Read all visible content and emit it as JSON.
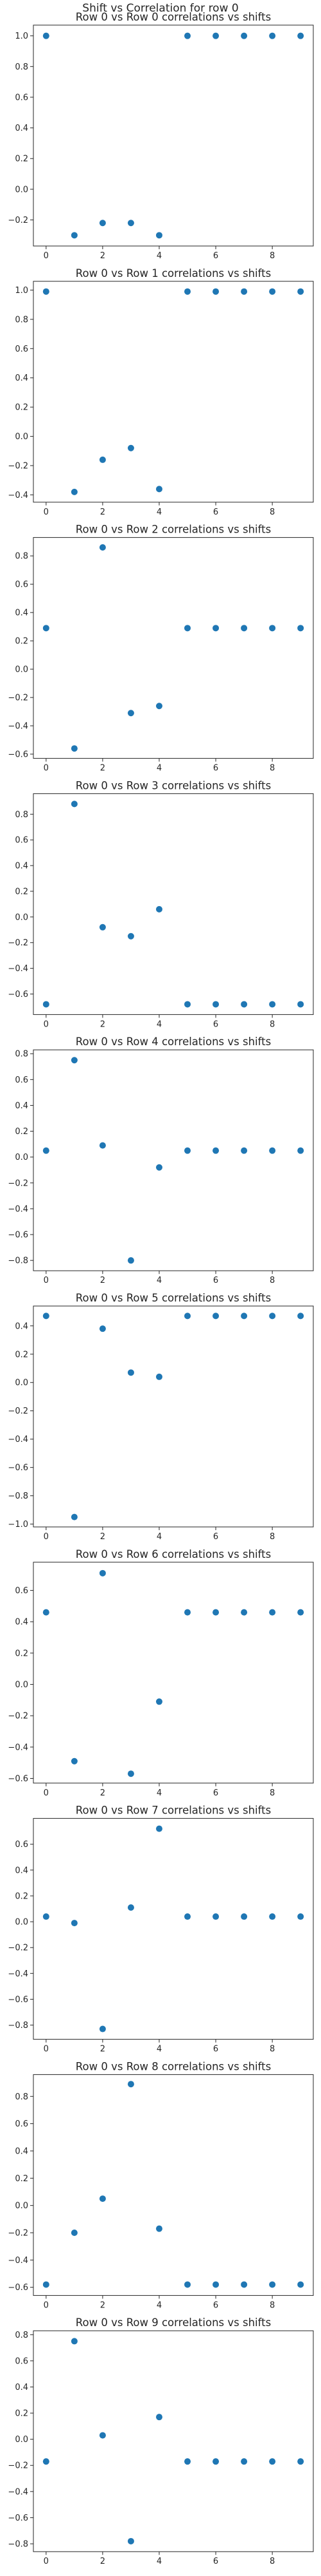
{
  "figure": {
    "suptitle": "Shift vs Correlation for row 0"
  },
  "chart_data": [
    {
      "type": "scatter",
      "title": "Row 0 vs Row 0 correlations vs shifts",
      "x": [
        0,
        1,
        2,
        3,
        4,
        5,
        6,
        7,
        8,
        9
      ],
      "y": [
        1.0,
        -0.3,
        -0.22,
        -0.22,
        -0.3,
        1.0,
        1.0,
        1.0,
        1.0,
        1.0
      ],
      "xlim": [
        -0.45,
        9.45
      ],
      "xticks": [
        0,
        2,
        4,
        6,
        8
      ],
      "ylim": [
        -0.37,
        1.07
      ],
      "yticks": [
        -0.2,
        0.0,
        0.2,
        0.4,
        0.6,
        0.8,
        1.0
      ],
      "ytick_labels": [
        "−0.2",
        "0.0",
        "0.2",
        "0.4",
        "0.6",
        "0.8",
        "1.0"
      ],
      "grid": false
    },
    {
      "type": "scatter",
      "title": "Row 0 vs Row 1 correlations vs shifts",
      "x": [
        0,
        1,
        2,
        3,
        4,
        5,
        6,
        7,
        8,
        9
      ],
      "y": [
        0.99,
        -0.38,
        -0.16,
        -0.08,
        -0.36,
        0.99,
        0.99,
        0.99,
        0.99,
        0.99
      ],
      "xlim": [
        -0.45,
        9.45
      ],
      "xticks": [
        0,
        2,
        4,
        6,
        8
      ],
      "ylim": [
        -0.45,
        1.06
      ],
      "yticks": [
        -0.4,
        -0.2,
        0.0,
        0.2,
        0.4,
        0.6,
        0.8,
        1.0
      ],
      "ytick_labels": [
        "−0.4",
        "−0.2",
        "0.0",
        "0.2",
        "0.4",
        "0.6",
        "0.8",
        "1.0"
      ],
      "grid": false
    },
    {
      "type": "scatter",
      "title": "Row 0 vs Row 2 correlations vs shifts",
      "x": [
        0,
        1,
        2,
        3,
        4,
        5,
        6,
        7,
        8,
        9
      ],
      "y": [
        0.29,
        -0.56,
        0.86,
        -0.31,
        -0.26,
        0.29,
        0.29,
        0.29,
        0.29,
        0.29
      ],
      "xlim": [
        -0.45,
        9.45
      ],
      "xticks": [
        0,
        2,
        4,
        6,
        8
      ],
      "ylim": [
        -0.63,
        0.93
      ],
      "yticks": [
        -0.6,
        -0.4,
        -0.2,
        0.0,
        0.2,
        0.4,
        0.6,
        0.8
      ],
      "ytick_labels": [
        "−0.6",
        "−0.4",
        "−0.2",
        "0.0",
        "0.2",
        "0.4",
        "0.6",
        "0.8"
      ],
      "grid": false
    },
    {
      "type": "scatter",
      "title": "Row 0 vs Row 3 correlations vs shifts",
      "x": [
        0,
        1,
        2,
        3,
        4,
        5,
        6,
        7,
        8,
        9
      ],
      "y": [
        -0.68,
        0.88,
        -0.08,
        -0.15,
        0.06,
        -0.68,
        -0.68,
        -0.68,
        -0.68,
        -0.68
      ],
      "xlim": [
        -0.45,
        9.45
      ],
      "xticks": [
        0,
        2,
        4,
        6,
        8
      ],
      "ylim": [
        -0.76,
        0.96
      ],
      "yticks": [
        -0.6,
        -0.4,
        -0.2,
        0.0,
        0.2,
        0.4,
        0.6,
        0.8
      ],
      "ytick_labels": [
        "−0.6",
        "−0.4",
        "−0.2",
        "0.0",
        "0.2",
        "0.4",
        "0.6",
        "0.8"
      ],
      "grid": false
    },
    {
      "type": "scatter",
      "title": "Row 0 vs Row 4 correlations vs shifts",
      "x": [
        0,
        1,
        2,
        3,
        4,
        5,
        6,
        7,
        8,
        9
      ],
      "y": [
        0.05,
        0.75,
        0.09,
        -0.8,
        -0.08,
        0.05,
        0.05,
        0.05,
        0.05,
        0.05
      ],
      "xlim": [
        -0.45,
        9.45
      ],
      "xticks": [
        0,
        2,
        4,
        6,
        8
      ],
      "ylim": [
        -0.88,
        0.83
      ],
      "yticks": [
        -0.8,
        -0.6,
        -0.4,
        -0.2,
        0.0,
        0.2,
        0.4,
        0.6,
        0.8
      ],
      "ytick_labels": [
        "−0.8",
        "−0.6",
        "−0.4",
        "−0.2",
        "0.0",
        "0.2",
        "0.4",
        "0.6",
        "0.8"
      ],
      "grid": false
    },
    {
      "type": "scatter",
      "title": "Row 0 vs Row 5 correlations vs shifts",
      "x": [
        0,
        1,
        2,
        3,
        4,
        5,
        6,
        7,
        8,
        9
      ],
      "y": [
        0.47,
        -0.95,
        0.38,
        0.07,
        0.04,
        0.47,
        0.47,
        0.47,
        0.47,
        0.47
      ],
      "xlim": [
        -0.45,
        9.45
      ],
      "xticks": [
        0,
        2,
        4,
        6,
        8
      ],
      "ylim": [
        -1.02,
        0.54
      ],
      "yticks": [
        -1.0,
        -0.8,
        -0.6,
        -0.4,
        -0.2,
        0.0,
        0.2,
        0.4
      ],
      "ytick_labels": [
        "−1.0",
        "−0.8",
        "−0.6",
        "−0.4",
        "−0.2",
        "0.0",
        "0.2",
        "0.4"
      ],
      "grid": false
    },
    {
      "type": "scatter",
      "title": "Row 0 vs Row 6 correlations vs shifts",
      "x": [
        0,
        1,
        2,
        3,
        4,
        5,
        6,
        7,
        8,
        9
      ],
      "y": [
        0.46,
        -0.49,
        0.71,
        -0.57,
        -0.11,
        0.46,
        0.46,
        0.46,
        0.46,
        0.46
      ],
      "xlim": [
        -0.45,
        9.45
      ],
      "xticks": [
        0,
        2,
        4,
        6,
        8
      ],
      "ylim": [
        -0.63,
        0.78
      ],
      "yticks": [
        -0.6,
        -0.4,
        -0.2,
        0.0,
        0.2,
        0.4,
        0.6
      ],
      "ytick_labels": [
        "−0.6",
        "−0.4",
        "−0.2",
        "0.0",
        "0.2",
        "0.4",
        "0.6"
      ],
      "grid": false
    },
    {
      "type": "scatter",
      "title": "Row 0 vs Row 7 correlations vs shifts",
      "x": [
        0,
        1,
        2,
        3,
        4,
        5,
        6,
        7,
        8,
        9
      ],
      "y": [
        0.04,
        -0.01,
        -0.83,
        0.11,
        0.72,
        0.04,
        0.04,
        0.04,
        0.04,
        0.04
      ],
      "xlim": [
        -0.45,
        9.45
      ],
      "xticks": [
        0,
        2,
        4,
        6,
        8
      ],
      "ylim": [
        -0.91,
        0.8
      ],
      "yticks": [
        -0.8,
        -0.6,
        -0.4,
        -0.2,
        0.0,
        0.2,
        0.4,
        0.6
      ],
      "ytick_labels": [
        "−0.8",
        "−0.6",
        "−0.4",
        "−0.2",
        "0.0",
        "0.2",
        "0.4",
        "0.6"
      ],
      "grid": false
    },
    {
      "type": "scatter",
      "title": "Row 0 vs Row 8 correlations vs shifts",
      "x": [
        0,
        1,
        2,
        3,
        4,
        5,
        6,
        7,
        8,
        9
      ],
      "y": [
        -0.58,
        -0.2,
        0.05,
        0.89,
        -0.17,
        -0.58,
        -0.58,
        -0.58,
        -0.58,
        -0.58
      ],
      "xlim": [
        -0.45,
        9.45
      ],
      "xticks": [
        0,
        2,
        4,
        6,
        8
      ],
      "ylim": [
        -0.66,
        0.96
      ],
      "yticks": [
        -0.6,
        -0.4,
        -0.2,
        0.0,
        0.2,
        0.4,
        0.6,
        0.8
      ],
      "ytick_labels": [
        "−0.6",
        "−0.4",
        "−0.2",
        "0.0",
        "0.2",
        "0.4",
        "0.6",
        "0.8"
      ],
      "grid": false
    },
    {
      "type": "scatter",
      "title": "Row 0 vs Row 9 correlations vs shifts",
      "x": [
        0,
        1,
        2,
        3,
        4,
        5,
        6,
        7,
        8,
        9
      ],
      "y": [
        -0.17,
        0.75,
        0.03,
        -0.78,
        0.17,
        -0.17,
        -0.17,
        -0.17,
        -0.17,
        -0.17
      ],
      "xlim": [
        -0.45,
        9.45
      ],
      "xticks": [
        0,
        2,
        4,
        6,
        8
      ],
      "ylim": [
        -0.86,
        0.83
      ],
      "yticks": [
        -0.8,
        -0.6,
        -0.4,
        -0.2,
        0.0,
        0.2,
        0.4,
        0.6,
        0.8
      ],
      "ytick_labels": [
        "−0.8",
        "−0.6",
        "−0.4",
        "−0.2",
        "0.0",
        "0.2",
        "0.4",
        "0.6",
        "0.8"
      ],
      "grid": false
    }
  ],
  "colors": {
    "marker": "#1f77b4",
    "axes": "#262626"
  }
}
